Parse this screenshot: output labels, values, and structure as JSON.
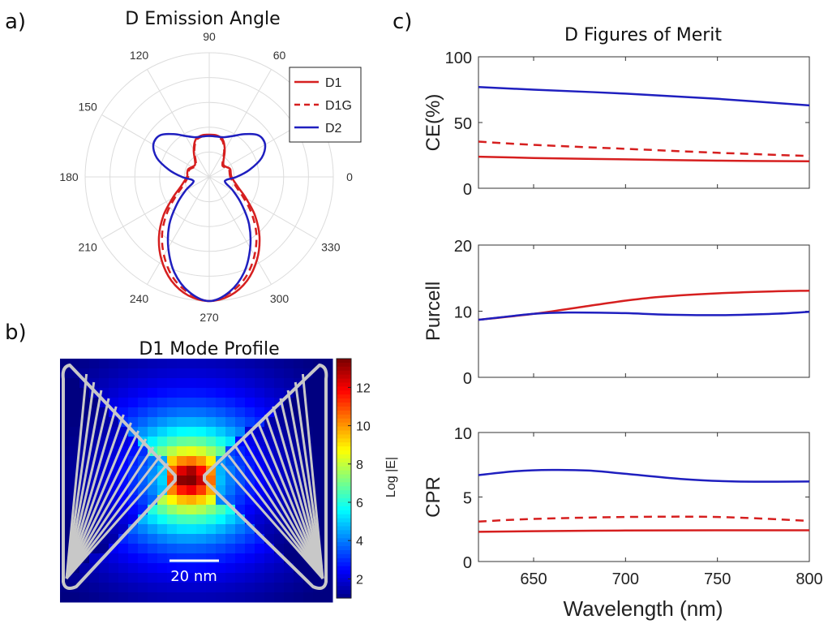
{
  "panel_labels": {
    "a": "a)",
    "b": "b)",
    "c": "c)"
  },
  "colors": {
    "D1": "#d61f1f",
    "D1G": "#d61f1f",
    "D2": "#1f1fbf"
  },
  "chart_data": [
    {
      "type": "polar",
      "title": "D Emission Angle",
      "angle_ticks": [
        "90",
        "60",
        "0",
        "330",
        "300",
        "270",
        "240",
        "210",
        "180",
        "150",
        "120"
      ],
      "angle_tick_values": [
        90,
        60,
        0,
        330,
        300,
        270,
        240,
        210,
        180,
        150,
        120
      ],
      "legend_position": "top-right",
      "series": [
        {
          "name": "D1",
          "style": "solid",
          "color": "#d61f1f",
          "theta_deg": [
            0,
            20,
            30,
            40,
            50,
            60,
            70,
            80,
            90,
            100,
            110,
            120,
            130,
            140,
            150,
            160,
            170,
            180,
            200,
            210,
            220,
            230,
            240,
            250,
            260,
            270,
            280,
            290,
            300,
            310,
            320,
            330,
            340
          ],
          "r": [
            0.18,
            0.18,
            0.16,
            0.15,
            0.18,
            0.25,
            0.32,
            0.34,
            0.34,
            0.34,
            0.32,
            0.25,
            0.18,
            0.15,
            0.16,
            0.18,
            0.18,
            0.18,
            0.25,
            0.34,
            0.48,
            0.63,
            0.77,
            0.89,
            0.97,
            1.0,
            0.97,
            0.89,
            0.77,
            0.63,
            0.48,
            0.34,
            0.25
          ]
        },
        {
          "name": "D1G",
          "style": "dashed",
          "color": "#d61f1f",
          "theta_deg": [
            0,
            20,
            30,
            40,
            50,
            60,
            70,
            80,
            90,
            100,
            110,
            120,
            130,
            140,
            150,
            160,
            170,
            180,
            200,
            210,
            220,
            230,
            240,
            250,
            260,
            270,
            280,
            290,
            300,
            310,
            320,
            330,
            340
          ],
          "r": [
            0.17,
            0.17,
            0.15,
            0.14,
            0.17,
            0.24,
            0.31,
            0.33,
            0.33,
            0.33,
            0.31,
            0.24,
            0.17,
            0.14,
            0.15,
            0.17,
            0.17,
            0.17,
            0.23,
            0.31,
            0.44,
            0.59,
            0.73,
            0.86,
            0.95,
            1.0,
            0.95,
            0.86,
            0.73,
            0.59,
            0.44,
            0.31,
            0.23
          ]
        },
        {
          "name": "D2",
          "style": "solid",
          "color": "#1f1fbf",
          "theta_deg": [
            0,
            10,
            20,
            30,
            40,
            50,
            60,
            70,
            80,
            90,
            100,
            110,
            120,
            130,
            140,
            150,
            160,
            170,
            180,
            190,
            200,
            210,
            220,
            230,
            240,
            250,
            260,
            270,
            280,
            290,
            300,
            310,
            320,
            330,
            340,
            350
          ],
          "r": [
            0.22,
            0.33,
            0.45,
            0.52,
            0.52,
            0.45,
            0.38,
            0.34,
            0.33,
            0.33,
            0.33,
            0.34,
            0.38,
            0.45,
            0.52,
            0.52,
            0.45,
            0.33,
            0.22,
            0.14,
            0.14,
            0.22,
            0.34,
            0.5,
            0.66,
            0.82,
            0.94,
            1.0,
            0.94,
            0.82,
            0.66,
            0.5,
            0.34,
            0.22,
            0.14,
            0.14
          ]
        }
      ]
    },
    {
      "type": "heatmap",
      "title": "D1 Mode Profile",
      "colorbar_label": "Log |E|",
      "colorbar_ticks": [
        2,
        4,
        6,
        8,
        10,
        12
      ],
      "colorbar_range": [
        1,
        13.5
      ],
      "scale_bar_label": "20 nm"
    },
    {
      "type": "line",
      "title": "D Figures of Merit",
      "xlabel": "Wavelength (nm)",
      "xlim": [
        620,
        800
      ],
      "xticks": [
        650,
        700,
        750,
        800
      ],
      "subplots": [
        {
          "ylabel": "CE(%)",
          "ylim": [
            0,
            100
          ],
          "yticks": [
            0,
            50,
            100
          ],
          "series": [
            {
              "name": "D1",
              "style": "solid",
              "color": "#d61f1f",
              "x": [
                620,
                650,
                700,
                750,
                800
              ],
              "y": [
                24,
                23,
                22,
                21,
                20.5
              ]
            },
            {
              "name": "D1G",
              "style": "dashed",
              "color": "#d61f1f",
              "x": [
                620,
                650,
                700,
                750,
                800
              ],
              "y": [
                35.5,
                33,
                30,
                27,
                24.5
              ]
            },
            {
              "name": "D2",
              "style": "solid",
              "color": "#1f1fbf",
              "x": [
                620,
                650,
                700,
                750,
                800
              ],
              "y": [
                77,
                75,
                72,
                68,
                63
              ]
            }
          ]
        },
        {
          "ylabel": "Purcell",
          "ylim": [
            0,
            20
          ],
          "yticks": [
            0,
            10,
            20
          ],
          "series": [
            {
              "name": "D1",
              "style": "solid",
              "color": "#d61f1f",
              "x": [
                620,
                650,
                680,
                700,
                720,
                750,
                780,
                800
              ],
              "y": [
                8.7,
                9.6,
                10.8,
                11.6,
                12.2,
                12.7,
                13.0,
                13.1
              ]
            },
            {
              "name": "D2",
              "style": "solid",
              "color": "#1f1fbf",
              "x": [
                620,
                650,
                670,
                700,
                720,
                750,
                780,
                800
              ],
              "y": [
                8.7,
                9.6,
                9.8,
                9.7,
                9.5,
                9.4,
                9.6,
                9.9
              ]
            }
          ]
        },
        {
          "ylabel": "CPR",
          "ylim": [
            0,
            10
          ],
          "yticks": [
            0,
            5,
            10
          ],
          "series": [
            {
              "name": "D1",
              "style": "solid",
              "color": "#d61f1f",
              "x": [
                620,
                650,
                700,
                750,
                800
              ],
              "y": [
                2.3,
                2.35,
                2.4,
                2.42,
                2.42
              ]
            },
            {
              "name": "D1G",
              "style": "dashed",
              "color": "#d61f1f",
              "x": [
                620,
                650,
                700,
                750,
                800
              ],
              "y": [
                3.1,
                3.3,
                3.45,
                3.45,
                3.15
              ]
            },
            {
              "name": "D2",
              "style": "solid",
              "color": "#1f1fbf",
              "x": [
                620,
                640,
                660,
                680,
                700,
                730,
                760,
                800
              ],
              "y": [
                6.7,
                7.0,
                7.1,
                7.05,
                6.8,
                6.4,
                6.2,
                6.2
              ]
            }
          ]
        }
      ]
    }
  ]
}
